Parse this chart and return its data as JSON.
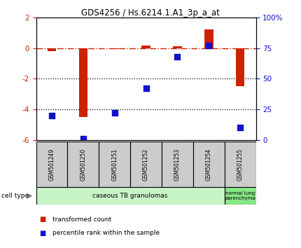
{
  "title": "GDS4256 / Hs.6214.1.A1_3p_a_at",
  "samples": [
    "GSM501249",
    "GSM501250",
    "GSM501251",
    "GSM501252",
    "GSM501253",
    "GSM501254",
    "GSM501255"
  ],
  "red_values": [
    -0.2,
    -4.5,
    -0.05,
    0.15,
    0.1,
    1.2,
    -2.5
  ],
  "blue_pct": [
    20,
    1,
    22,
    42,
    68,
    77,
    10
  ],
  "ylim_left": [
    -6,
    2
  ],
  "ylim_right": [
    0,
    100
  ],
  "right_ticks": [
    0,
    25,
    50,
    75,
    100
  ],
  "right_tick_labels": [
    "0",
    "25",
    "50",
    "75",
    "100%"
  ],
  "left_ticks": [
    -6,
    -4,
    -2,
    0,
    2
  ],
  "hlines": [
    -2,
    -4
  ],
  "red_color": "#cc2200",
  "blue_color": "#1111cc",
  "bg_color": "#ffffff",
  "sample_box_color": "#cccccc",
  "cell_color_1": "#c8f5c8",
  "cell_color_2": "#88e888",
  "legend_items": [
    {
      "label": "transformed count",
      "color": "#cc2200"
    },
    {
      "label": "percentile rank within the sample",
      "color": "#1111cc"
    }
  ]
}
